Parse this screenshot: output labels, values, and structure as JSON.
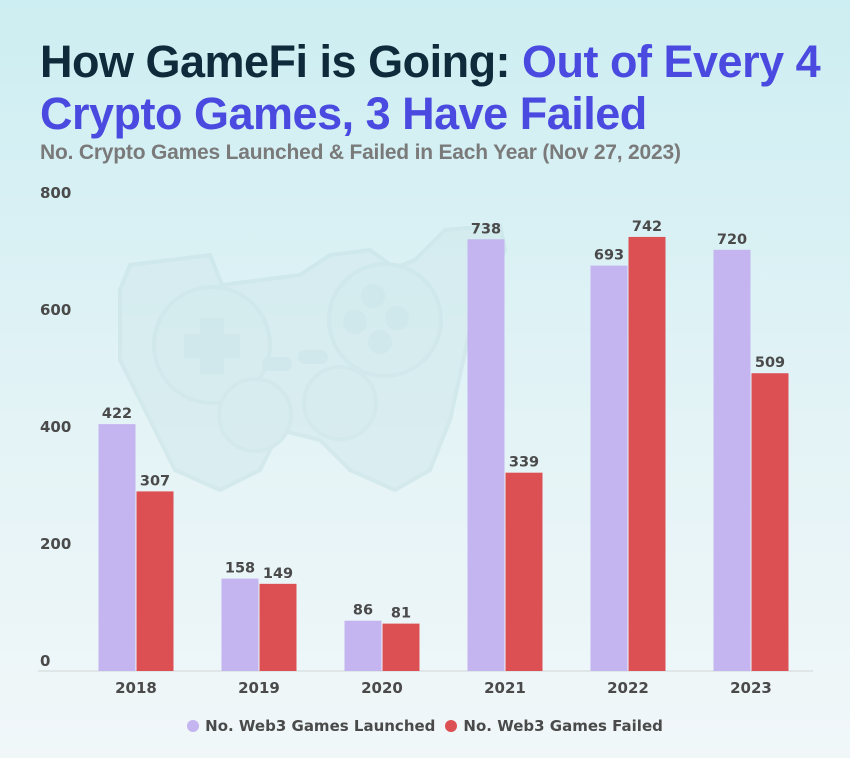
{
  "header": {
    "title_part1": "How GameFi is Going: ",
    "title_part2": "Out of Every 4 Crypto Games, 3 Have Failed",
    "subtitle": "No. Crypto Games Launched & Failed in Each Year (Nov 27, 2023)"
  },
  "watermark": {
    "icon": "game-controller-icon"
  },
  "colors": {
    "title_dark": "#0f2a3a",
    "title_accent": "#4a4ae0",
    "launched": "#c4b5f0",
    "failed": "#dc5054"
  },
  "chart_data": {
    "type": "bar",
    "title": "How GameFi is Going: Out of Every 4 Crypto Games, 3 Have Failed",
    "subtitle": "No. Crypto Games Launched & Failed in Each Year (Nov 27, 2023)",
    "xlabel": "",
    "ylabel": "",
    "categories": [
      "2018",
      "2019",
      "2020",
      "2021",
      "2022",
      "2023"
    ],
    "series": [
      {
        "name": "No. Web3 Games Launched",
        "color": "#c4b5f0",
        "values": [
          422,
          158,
          86,
          738,
          693,
          720
        ]
      },
      {
        "name": "No. Web3 Games Failed",
        "color": "#dc5054",
        "values": [
          307,
          149,
          81,
          339,
          742,
          509
        ]
      }
    ],
    "ylim": [
      0,
      800
    ],
    "yticks": [
      0,
      200,
      400,
      600,
      800
    ],
    "grid": false,
    "data_labels": true,
    "legend": "bottom-center"
  }
}
